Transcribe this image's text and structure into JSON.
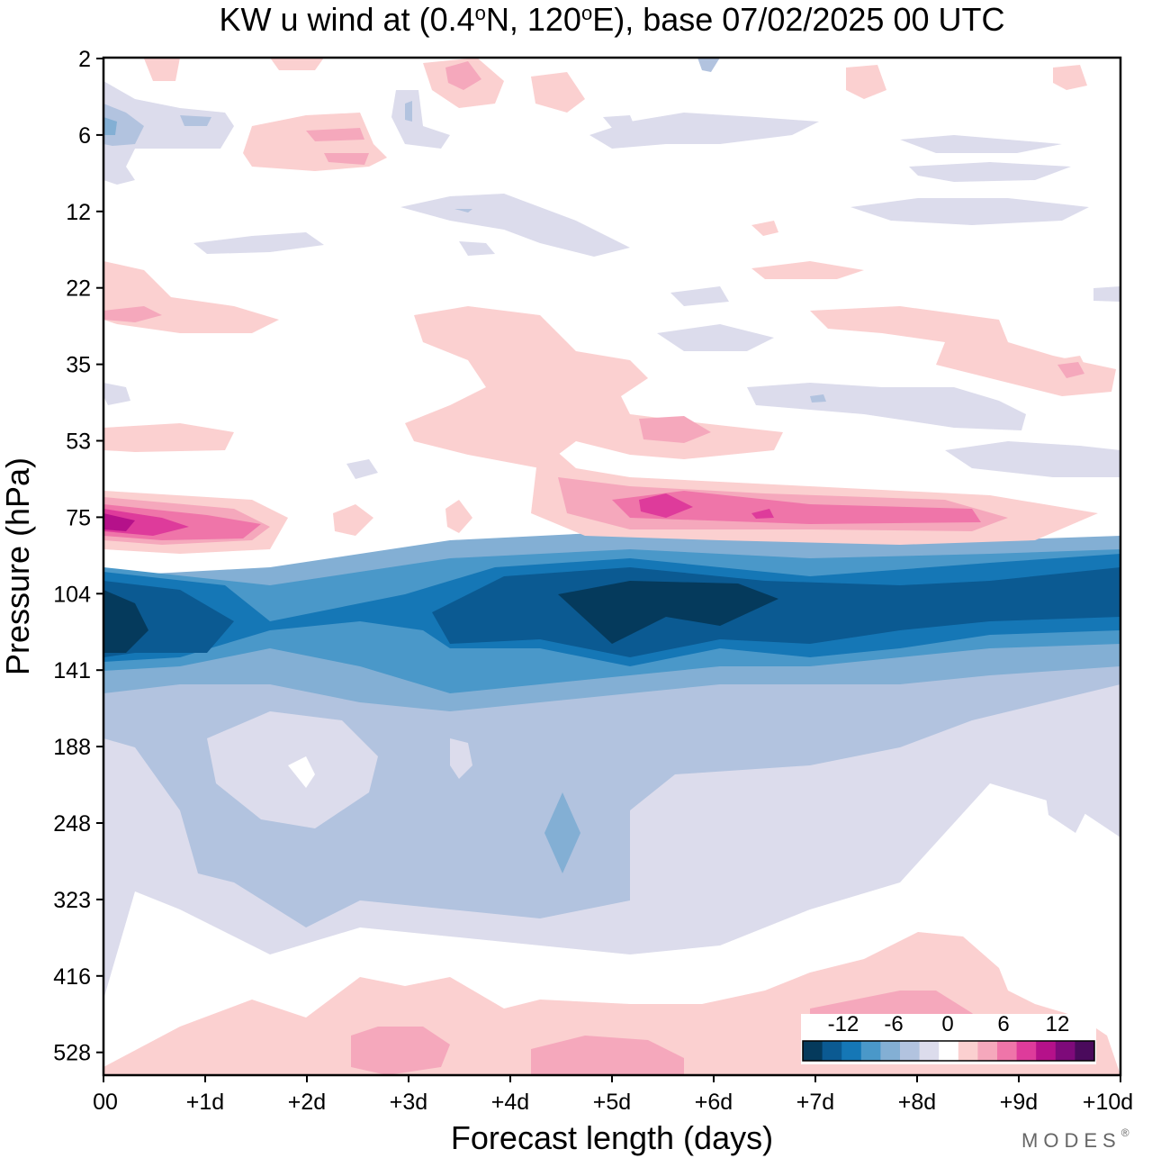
{
  "chart_data": {
    "type": "contour",
    "title_pre": "KW u wind at (0.4",
    "title_deg1": "o",
    "title_mid": "N, 120",
    "title_deg2": "o",
    "title_post": "E),  base 07/02/2025  00 UTC",
    "xlabel": "Forecast length (days)",
    "ylabel": "Pressure (hPa)",
    "x_ticks": [
      "00",
      "+1d",
      "+2d",
      "+3d",
      "+4d",
      "+5d",
      "+6d",
      "+7d",
      "+8d",
      "+9d",
      "+10d"
    ],
    "x_range_days": [
      0,
      10
    ],
    "y_ticks": [
      "2",
      "6",
      "12",
      "22",
      "35",
      "53",
      "75",
      "104",
      "141",
      "188",
      "248",
      "323",
      "416",
      "528"
    ],
    "levels": [
      -15,
      -12,
      -9,
      -6,
      -3,
      -1,
      1,
      3,
      6,
      9,
      12,
      15
    ],
    "colorbar": {
      "labels": [
        "-12",
        "-6",
        "0",
        "6",
        "12"
      ],
      "colors": [
        "#053a5c",
        "#0b5a92",
        "#1577b6",
        "#4a98c9",
        "#83afd4",
        "#b2c3df",
        "#dcdcec",
        "#ffffff",
        "#fbd0d0",
        "#f5a8bc",
        "#ef75a9",
        "#de3b9b",
        "#b5118a",
        "#7e0a7a",
        "#4a0a5c"
      ]
    },
    "features": [
      {
        "name": "easterly-jet-100hPa",
        "x_days": [
          0,
          10
        ],
        "pressure_hPa": 110,
        "peak_u": -15
      },
      {
        "name": "westerly-band-75hPa",
        "x_days": [
          0,
          10
        ],
        "pressure_hPa": 75,
        "peak_u": 12
      },
      {
        "name": "westerly-near-surface",
        "x_days": [
          0,
          10
        ],
        "pressure_hPa": 520,
        "peak_u": 6
      },
      {
        "name": "weak-easterly-200-300hPa",
        "x_days": [
          0,
          10
        ],
        "pressure_hPa": 250,
        "peak_u": -6
      }
    ]
  },
  "brand": "MODES",
  "brand_mark": "®"
}
